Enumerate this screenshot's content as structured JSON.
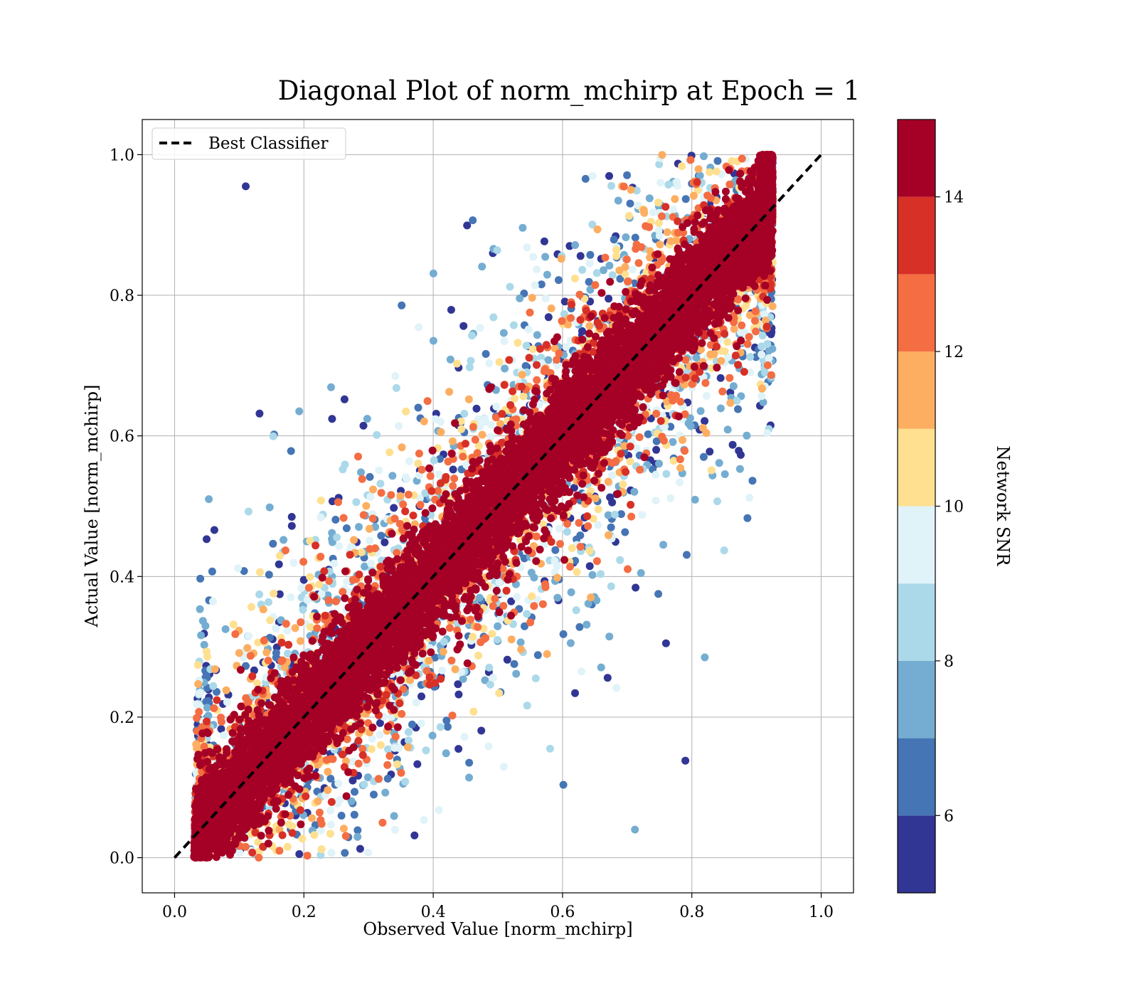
{
  "chart_data": {
    "type": "scatter",
    "title": "Diagonal Plot of norm_mchirp at Epoch = 1",
    "xlabel": "Observed Value [norm_mchirp]",
    "ylabel": "Actual Value [norm_mchirp]",
    "xlim": [
      -0.05,
      1.05
    ],
    "ylim": [
      -0.05,
      1.05
    ],
    "xticks": [
      0.0,
      0.2,
      0.4,
      0.6,
      0.8,
      1.0
    ],
    "yticks": [
      0.0,
      0.2,
      0.4,
      0.6,
      0.8,
      1.0
    ],
    "xtick_labels": [
      "0.0",
      "0.2",
      "0.4",
      "0.6",
      "0.8",
      "1.0"
    ],
    "ytick_labels": [
      "0.0",
      "0.2",
      "0.4",
      "0.6",
      "0.8",
      "1.0"
    ],
    "grid": true,
    "legend": {
      "placement": "upper-left",
      "entries": [
        "Best Classifier"
      ]
    },
    "reference_line": {
      "name": "Best Classifier",
      "style": "dashed",
      "color": "#000000",
      "x": [
        0.0,
        1.0
      ],
      "y": [
        0.0,
        1.0
      ]
    },
    "point_cloud": {
      "description_of_pattern": "dense band along y=x colored high SNR; scatter spreads away from diagonal with lower SNR",
      "x_range": [
        0.02,
        0.93
      ],
      "y_range": [
        0.0,
        1.0
      ],
      "color_by": "Network SNR",
      "sample_outliers": [
        {
          "x": 0.11,
          "y": 0.955,
          "snr": 5.5
        },
        {
          "x": 0.053,
          "y": 0.51,
          "snr": 7.5
        },
        {
          "x": 0.82,
          "y": 0.285,
          "snr": 7.0
        },
        {
          "x": 0.886,
          "y": 0.483,
          "snr": 6.0
        },
        {
          "x": 0.79,
          "y": 0.138,
          "snr": 5.5
        },
        {
          "x": 0.76,
          "y": 0.305,
          "snr": 5.5
        },
        {
          "x": 0.712,
          "y": 0.04,
          "snr": 7.0
        }
      ]
    },
    "colorbar": {
      "label": "Network SNR",
      "range": [
        5.0,
        15.0
      ],
      "bin_edges": [
        5,
        6,
        7,
        8,
        9,
        10,
        11,
        12,
        13,
        14,
        15
      ],
      "bin_colors": [
        "#313695",
        "#4575b4",
        "#74add1",
        "#abd9e9",
        "#e0f3f8",
        "#fee090",
        "#fdae61",
        "#f46d43",
        "#d73027",
        "#a50026"
      ],
      "ticks": [
        6,
        8,
        10,
        12,
        14
      ],
      "tick_labels": [
        "6",
        "8",
        "10",
        "12",
        "14"
      ]
    }
  }
}
